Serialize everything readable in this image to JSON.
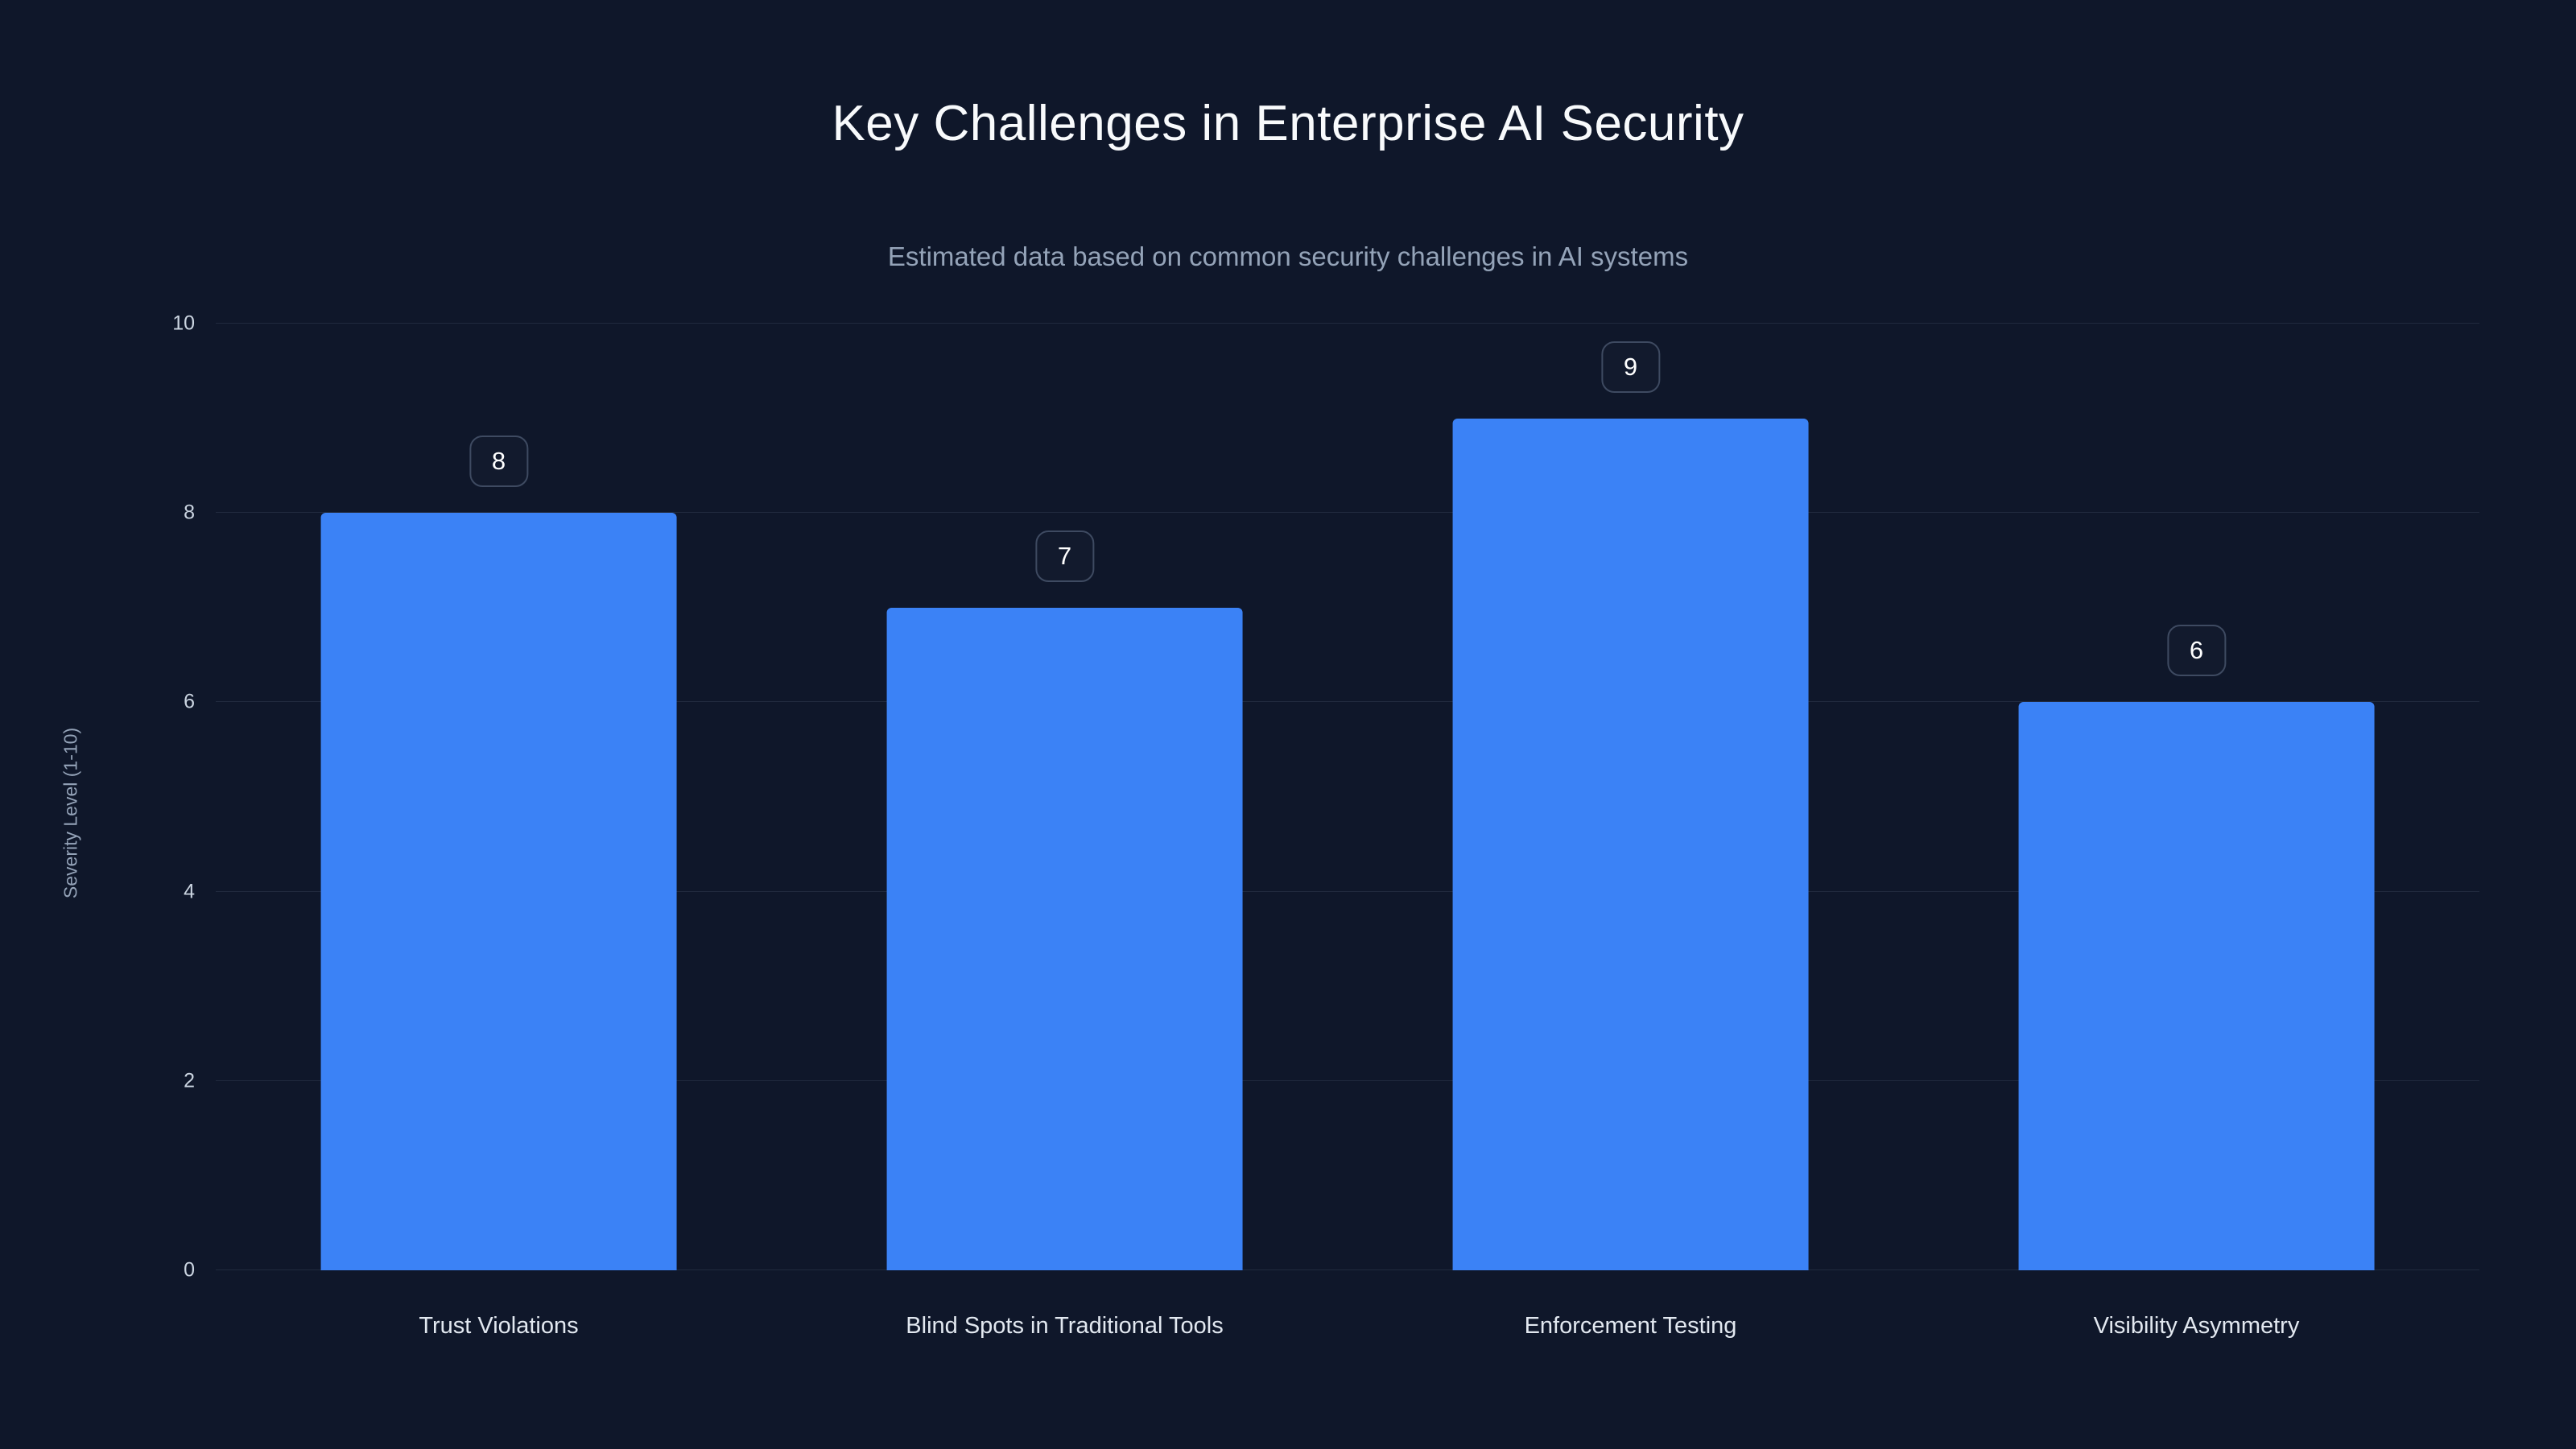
{
  "chart": {
    "title": "Key Challenges in Enterprise AI Security",
    "subtitle": "Estimated data based on common security challenges in AI systems"
  },
  "chart_data": {
    "type": "bar",
    "title": "Key Challenges in Enterprise AI Security",
    "subtitle": "Estimated data based on common security challenges in AI systems",
    "categories": [
      "Trust Violations",
      "Blind Spots in Traditional Tools",
      "Enforcement Testing",
      "Visibility Asymmetry"
    ],
    "values": [
      8,
      7,
      9,
      6
    ],
    "xlabel": "",
    "ylabel": "Severity Level (1-10)",
    "ylim": [
      0,
      10
    ],
    "yticks": [
      0,
      2,
      4,
      6,
      8,
      10
    ],
    "grid": true,
    "legend": false,
    "value_labels_shown": true,
    "colors": {
      "background": "#0f172a",
      "bar": "#3b82f6",
      "gridline": "rgba(148,163,184,0.14)",
      "title_text": "#f8fafc",
      "subtitle_text": "#94a3b8",
      "tick_text": "#cbd5e1",
      "value_label_border": "#3e4a61",
      "value_label_text": "#ffffff"
    }
  }
}
